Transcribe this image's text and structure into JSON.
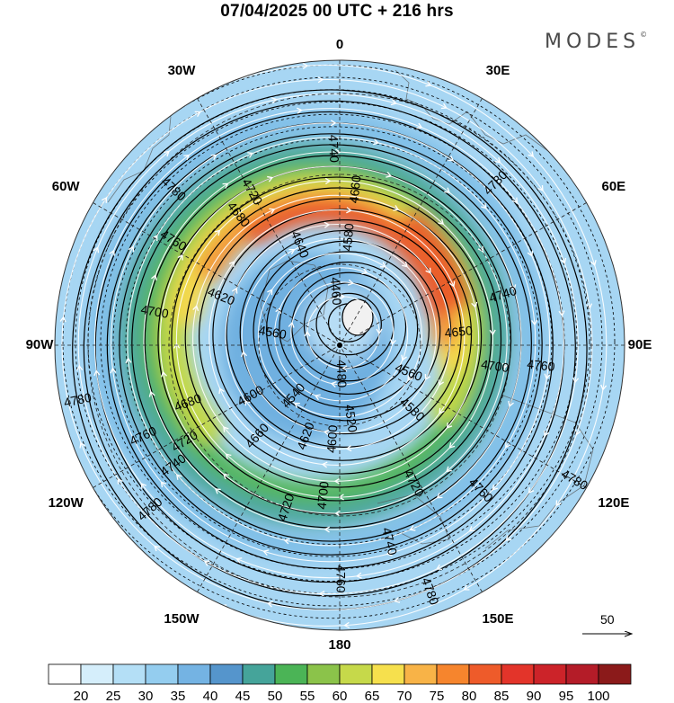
{
  "title": "07/04/2025  00 UTC  + 216 hrs",
  "brand": "MODES",
  "brand_mark": "©",
  "longitude_labels": [
    {
      "text": "0",
      "deg": 0
    },
    {
      "text": "30E",
      "deg": 30
    },
    {
      "text": "60E",
      "deg": 60
    },
    {
      "text": "90E",
      "deg": 90
    },
    {
      "text": "120E",
      "deg": 120
    },
    {
      "text": "150E",
      "deg": 150
    },
    {
      "text": "180",
      "deg": 180
    },
    {
      "text": "150W",
      "deg": 210
    },
    {
      "text": "120W",
      "deg": 240
    },
    {
      "text": "90W",
      "deg": 270
    },
    {
      "text": "60W",
      "deg": 300
    },
    {
      "text": "30W",
      "deg": 330
    }
  ],
  "contour_labels": [
    {
      "text": "4460",
      "angle": 355,
      "frac": 0.19
    },
    {
      "text": "4480",
      "angle": 178,
      "frac": 0.1
    },
    {
      "text": "4520",
      "angle": 172,
      "frac": 0.26
    },
    {
      "text": "4540",
      "angle": 222,
      "frac": 0.24
    },
    {
      "text": "4560",
      "angle": 112,
      "frac": 0.26
    },
    {
      "text": "4560",
      "angle": 280,
      "frac": 0.24
    },
    {
      "text": "4580",
      "angle": 132,
      "frac": 0.34
    },
    {
      "text": "4580",
      "angle": 5,
      "frac": 0.38
    },
    {
      "text": "4600",
      "angle": 184,
      "frac": 0.33
    },
    {
      "text": "4600",
      "angle": 240,
      "frac": 0.36
    },
    {
      "text": "4620",
      "angle": 200,
      "frac": 0.34
    },
    {
      "text": "4620",
      "angle": 292,
      "frac": 0.45
    },
    {
      "text": "4640",
      "angle": 338,
      "frac": 0.38
    },
    {
      "text": "4650",
      "angle": 84,
      "frac": 0.42
    },
    {
      "text": "4660",
      "angle": 6,
      "frac": 0.55
    },
    {
      "text": "4660",
      "angle": 222,
      "frac": 0.43
    },
    {
      "text": "4680",
      "angle": 322,
      "frac": 0.58
    },
    {
      "text": "4680",
      "angle": 249,
      "frac": 0.57
    },
    {
      "text": "4700",
      "angle": 280,
      "frac": 0.66
    },
    {
      "text": "4700",
      "angle": 186,
      "frac": 0.53
    },
    {
      "text": "4700",
      "angle": 98,
      "frac": 0.55
    },
    {
      "text": "4720",
      "angle": 330,
      "frac": 0.62
    },
    {
      "text": "4720",
      "angle": 152,
      "frac": 0.55
    },
    {
      "text": "4720",
      "angle": 238,
      "frac": 0.64
    },
    {
      "text": "4720",
      "angle": 198,
      "frac": 0.6
    },
    {
      "text": "4740",
      "angle": 358,
      "frac": 0.69
    },
    {
      "text": "4740",
      "angle": 73,
      "frac": 0.6
    },
    {
      "text": "4740",
      "angle": 234,
      "frac": 0.72
    },
    {
      "text": "4740",
      "angle": 166,
      "frac": 0.71
    },
    {
      "text": "4760",
      "angle": 302,
      "frac": 0.69
    },
    {
      "text": "4760",
      "angle": 96,
      "frac": 0.71
    },
    {
      "text": "4760",
      "angle": 136,
      "frac": 0.71
    },
    {
      "text": "4760",
      "angle": 245,
      "frac": 0.76
    },
    {
      "text": "4760",
      "angle": 180,
      "frac": 0.82
    },
    {
      "text": "4780",
      "angle": 313,
      "frac": 0.8
    },
    {
      "text": "4780",
      "angle": 44,
      "frac": 0.79
    },
    {
      "text": "4780",
      "angle": 258,
      "frac": 0.94
    },
    {
      "text": "4780",
      "angle": 229,
      "frac": 0.88
    },
    {
      "text": "4780",
      "angle": 120,
      "frac": 0.95
    },
    {
      "text": "4780",
      "angle": 160,
      "frac": 0.92
    }
  ],
  "reference_vector": {
    "label": "50"
  },
  "colorbar": {
    "tick_labels": [
      "20",
      "25",
      "30",
      "35",
      "40",
      "45",
      "50",
      "55",
      "60",
      "65",
      "70",
      "75",
      "80",
      "85",
      "90",
      "95",
      "100"
    ],
    "colors": [
      "#ffffff",
      "#d5eefb",
      "#b4dff6",
      "#94cdef",
      "#74b3e3",
      "#5595cc",
      "#45a49a",
      "#4bb456",
      "#8bc34a",
      "#c6d94a",
      "#f6e04d",
      "#f8b347",
      "#f6852d",
      "#ee5b2a",
      "#e3342a",
      "#cc2329",
      "#b41c28",
      "#8b1a1a"
    ]
  }
}
